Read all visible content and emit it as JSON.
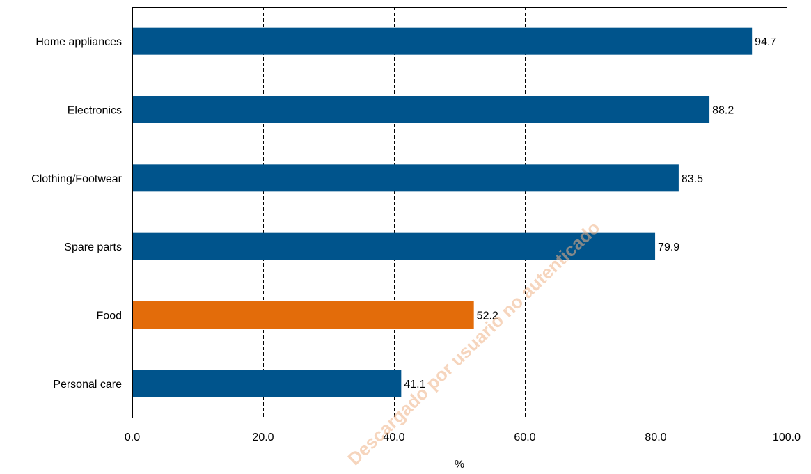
{
  "chart_data": {
    "type": "bar",
    "orientation": "horizontal",
    "categories": [
      "Home appliances",
      "Electronics",
      "Clothing/Footwear",
      "Spare parts",
      "Food",
      "Personal care"
    ],
    "values": [
      94.7,
      88.2,
      83.5,
      79.9,
      52.2,
      41.1
    ],
    "value_labels": [
      "94.7",
      "88.2",
      "83.5",
      "79.9",
      "52.2",
      "41.1"
    ],
    "highlight_category": "Food",
    "colors": {
      "default": "#00548c",
      "highlight": "#e36c0a",
      "grid": "#000000"
    },
    "title": "",
    "xlabel": "%",
    "ylabel": "",
    "xlim": [
      0,
      100
    ],
    "x_ticks": [
      0,
      20,
      40,
      60,
      80,
      100
    ],
    "x_tick_labels": [
      "0.0",
      "20.0",
      "40.0",
      "60.0",
      "80.0",
      "100.0"
    ],
    "grid": "vertical-dashed",
    "legend": "none"
  },
  "watermark": "Descargado por usuario no autenticado"
}
